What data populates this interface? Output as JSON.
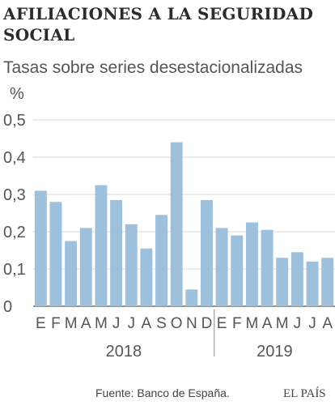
{
  "header": {
    "title": "AFILIACIONES A LA SEGURIDAD SOCIAL",
    "subtitle": "Tasas sobre series desestacionalizadas"
  },
  "footer": {
    "source": "Fuente: Banco de España.",
    "brand": "EL PAÍS"
  },
  "colors": {
    "bar": "#9dc1dd",
    "grid": "#d9d9d9",
    "axis": "#555555"
  },
  "chart_data": {
    "type": "bar",
    "ylabel": "%",
    "ylim": [
      0,
      0.5
    ],
    "yticks": [
      "0",
      "0,1",
      "0,2",
      "0,3",
      "0,4",
      "0,5"
    ],
    "grid": true,
    "categories": [
      "E",
      "F",
      "M",
      "A",
      "M",
      "J",
      "J",
      "A",
      "S",
      "O",
      "N",
      "D",
      "E",
      "F",
      "M",
      "A",
      "M",
      "J",
      "J",
      "A"
    ],
    "years": [
      {
        "label": "2018",
        "count": 12
      },
      {
        "label": "2019",
        "count": 8
      }
    ],
    "values": [
      0.31,
      0.28,
      0.175,
      0.21,
      0.325,
      0.285,
      0.22,
      0.155,
      0.245,
      0.44,
      0.045,
      0.285,
      0.21,
      0.19,
      0.225,
      0.205,
      0.13,
      0.145,
      0.12,
      0.13
    ]
  }
}
